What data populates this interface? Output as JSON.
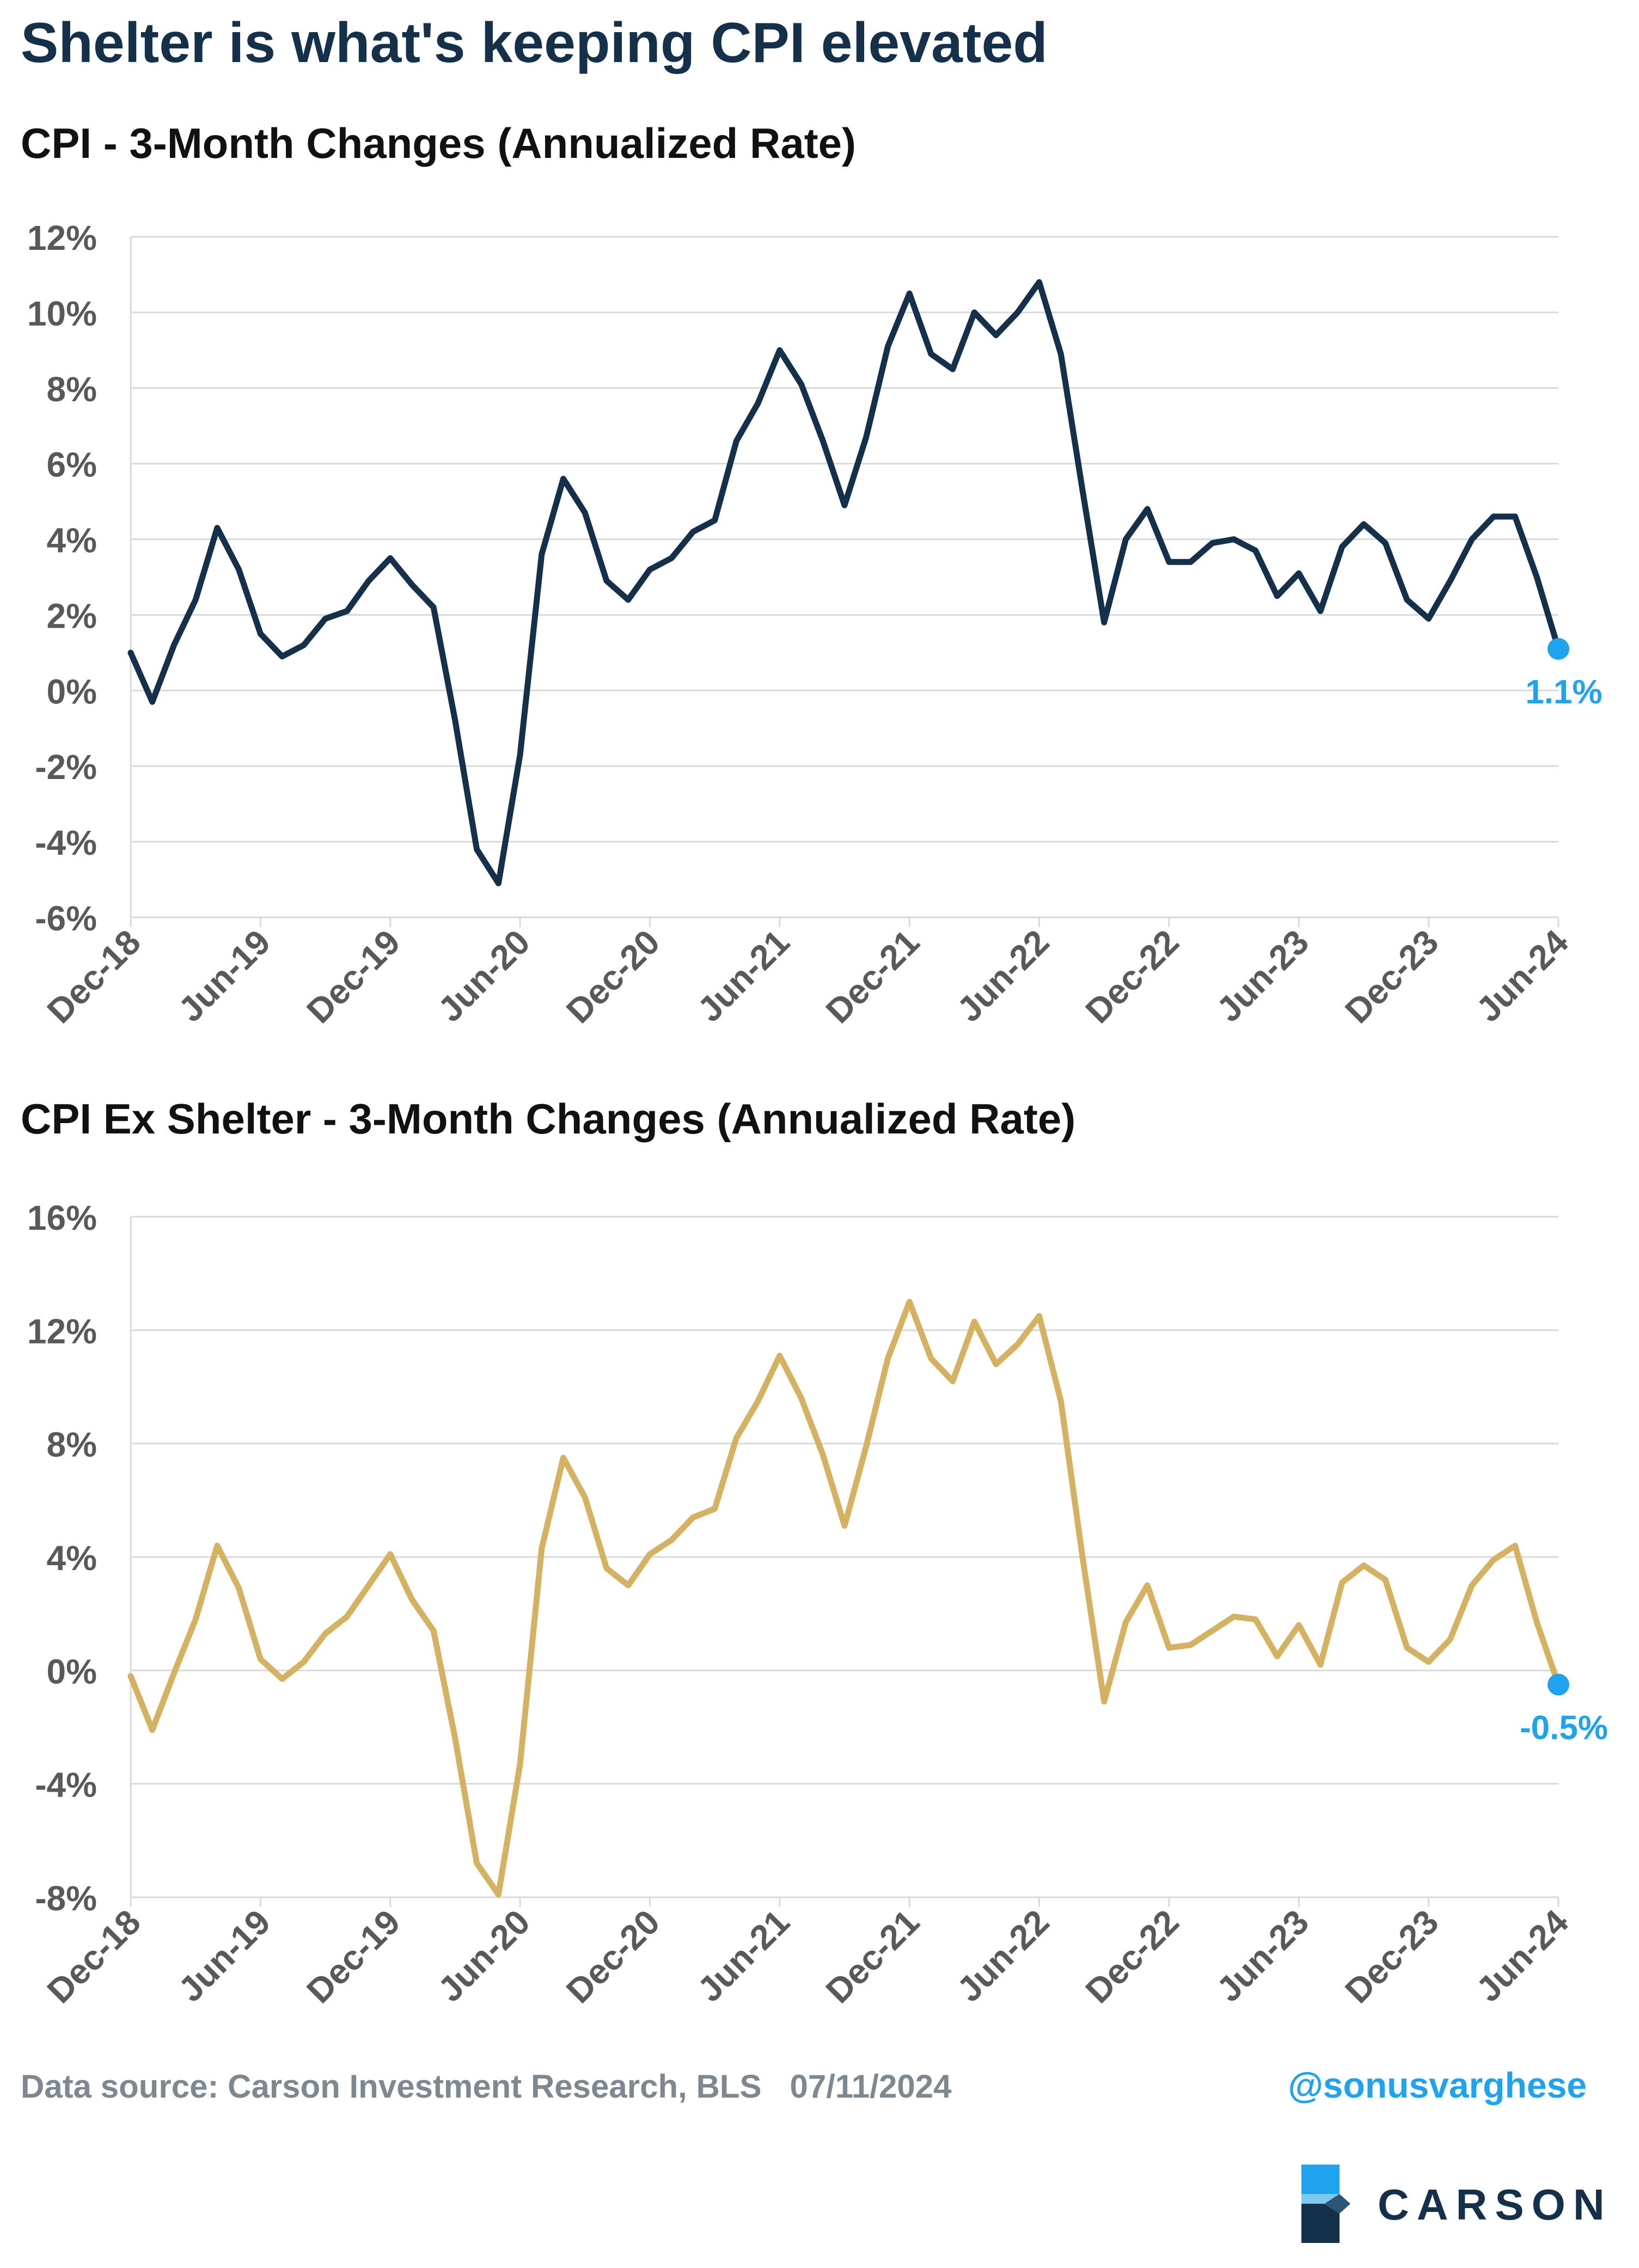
{
  "title": "Shelter is what's keeping CPI elevated",
  "footer": {
    "source": "Data source: Carson Investment Research, BLS",
    "date": "07/11/2024",
    "handle": "@sonusvarghese"
  },
  "logo": {
    "text": "CARSON",
    "icon": "carson-chevron-logo"
  },
  "colors": {
    "cpi": "#14304a",
    "ex_shelter": "#d4b261",
    "highlight": "#1fa3ee",
    "grid": "#d9d9d9",
    "axis_text": "#595959"
  },
  "chart_data": [
    {
      "type": "line",
      "title": "CPI - 3-Month Changes (Annualized Rate)",
      "xlabel": "",
      "ylabel": "",
      "ylim": [
        -6,
        12
      ],
      "yticks": [
        -6,
        -4,
        -2,
        0,
        2,
        4,
        6,
        8,
        10,
        12
      ],
      "ytick_labels": [
        "-6%",
        "-4%",
        "-2%",
        "0%",
        "2%",
        "4%",
        "6%",
        "8%",
        "10%",
        "12%"
      ],
      "x_start": "Dec-18",
      "xtick_labels": [
        "Dec-18",
        "Jun-19",
        "Dec-19",
        "Jun-20",
        "Dec-20",
        "Jun-21",
        "Dec-21",
        "Jun-22",
        "Dec-22",
        "Jun-23",
        "Dec-23",
        "Jun-24"
      ],
      "grid": true,
      "series": [
        {
          "values": [
            1.0,
            -0.3,
            1.2,
            2.4,
            4.3,
            3.2,
            1.5,
            0.9,
            1.2,
            1.9,
            2.1,
            2.9,
            3.5,
            2.8,
            2.2,
            -0.8,
            -4.2,
            -5.1,
            -1.7,
            3.6,
            5.6,
            4.7,
            2.9,
            2.4,
            3.2,
            3.5,
            4.2,
            4.5,
            6.6,
            7.6,
            9.0,
            8.1,
            6.6,
            4.9,
            6.7,
            9.1,
            10.5,
            8.9,
            8.5,
            10.0,
            9.4,
            10.0,
            10.8,
            8.9,
            5.3,
            1.8,
            4.0,
            4.8,
            3.4,
            3.4,
            3.9,
            4.0,
            3.7,
            2.5,
            3.1,
            2.1,
            3.8,
            4.4,
            3.9,
            2.4,
            1.9,
            2.9,
            4.0,
            4.6,
            4.6,
            3.0,
            1.1
          ]
        }
      ],
      "annotation": {
        "label": "1.1%",
        "value": 1.1
      }
    },
    {
      "type": "line",
      "title": "CPI Ex Shelter - 3-Month Changes (Annualized Rate)",
      "xlabel": "",
      "ylabel": "",
      "ylim": [
        -8,
        16
      ],
      "yticks": [
        -8,
        -4,
        0,
        4,
        8,
        12,
        16
      ],
      "ytick_labels": [
        "-8%",
        "-4%",
        "0%",
        "4%",
        "8%",
        "12%",
        "16%"
      ],
      "x_start": "Dec-18",
      "xtick_labels": [
        "Dec-18",
        "Jun-19",
        "Dec-19",
        "Jun-20",
        "Dec-20",
        "Jun-21",
        "Dec-21",
        "Jun-22",
        "Dec-22",
        "Jun-23",
        "Dec-23",
        "Jun-24"
      ],
      "grid": true,
      "series": [
        {
          "values": [
            -0.2,
            -2.1,
            -0.1,
            1.8,
            4.4,
            2.9,
            0.4,
            -0.3,
            0.3,
            1.3,
            1.9,
            3.0,
            4.1,
            2.5,
            1.4,
            -2.4,
            -6.8,
            -7.9,
            -3.3,
            4.3,
            7.5,
            6.1,
            3.6,
            3.0,
            4.1,
            4.6,
            5.4,
            5.7,
            8.2,
            9.5,
            11.1,
            9.6,
            7.6,
            5.1,
            7.9,
            11.0,
            13.0,
            11.0,
            10.2,
            12.3,
            10.8,
            11.5,
            12.5,
            9.5,
            4.0,
            -1.1,
            1.7,
            3.0,
            0.8,
            0.9,
            1.4,
            1.9,
            1.8,
            0.5,
            1.6,
            0.2,
            3.1,
            3.7,
            3.2,
            0.8,
            0.3,
            1.1,
            3.0,
            3.9,
            4.4,
            1.7,
            -0.5
          ]
        }
      ],
      "annotation": {
        "label": "-0.5%",
        "value": -0.5
      }
    }
  ]
}
